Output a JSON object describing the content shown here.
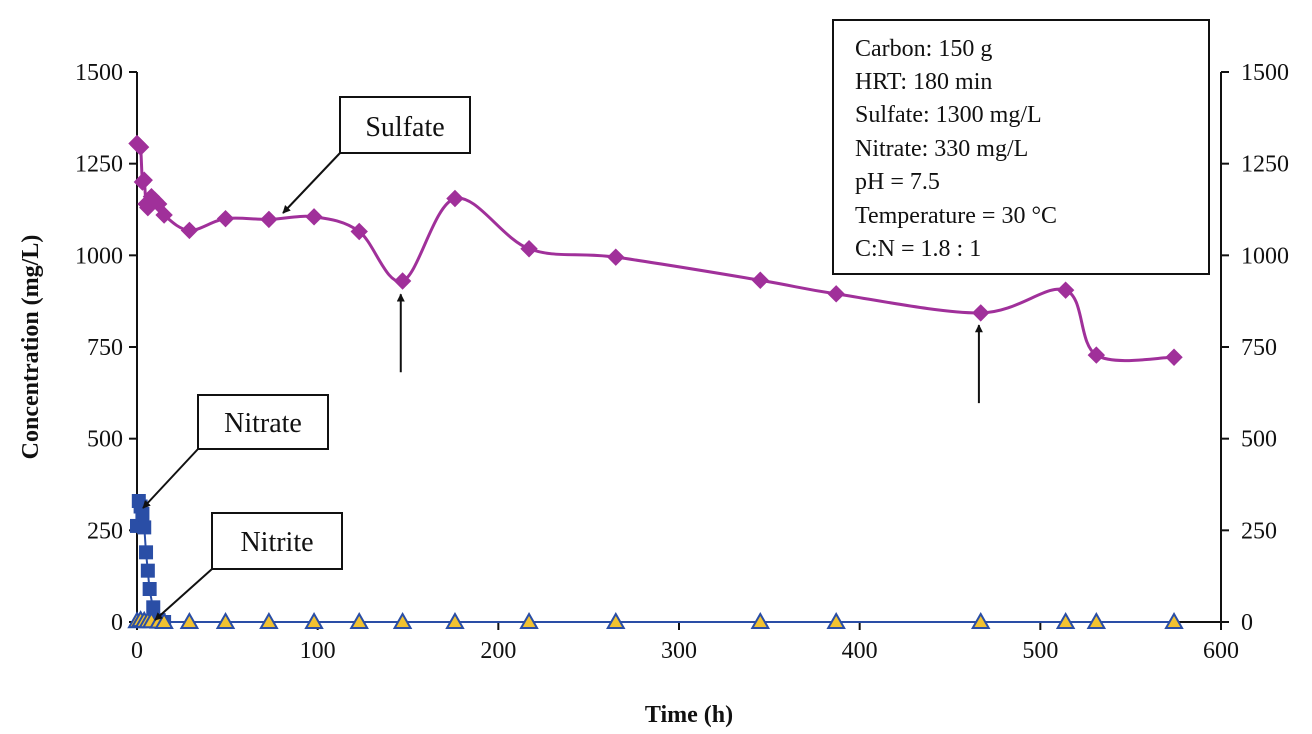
{
  "chart_data": {
    "type": "line",
    "title": "",
    "xlabel": "Time (h)",
    "ylabel": "Concentration (mg/L)",
    "xlim": [
      0,
      600
    ],
    "ylim": [
      0,
      1500
    ],
    "x_ticks": [
      "0",
      "100",
      "200",
      "300",
      "400",
      "500",
      "600"
    ],
    "y_ticks": [
      "0",
      "250",
      "500",
      "750",
      "1000",
      "1250",
      "1500"
    ],
    "y2_ticks": [
      "0",
      "250",
      "500",
      "750",
      "1000",
      "1250",
      "1500"
    ],
    "grid": false,
    "series": [
      {
        "name": "Sulfate",
        "marker": "diamond",
        "color": "#a0309a",
        "points": [
          [
            0,
            1305
          ],
          [
            1,
            1300
          ],
          [
            2,
            1295
          ],
          [
            3,
            1200
          ],
          [
            4,
            1205
          ],
          [
            5,
            1140
          ],
          [
            6,
            1130
          ],
          [
            8,
            1160
          ],
          [
            10,
            1150
          ],
          [
            12,
            1140
          ],
          [
            15,
            1110
          ],
          [
            29,
            1068
          ],
          [
            49,
            1100
          ],
          [
            73,
            1098
          ],
          [
            98,
            1105
          ],
          [
            123,
            1065
          ],
          [
            147,
            930
          ],
          [
            176,
            1155
          ],
          [
            217,
            1018
          ],
          [
            265,
            995
          ],
          [
            345,
            932
          ],
          [
            387,
            895
          ],
          [
            467,
            843
          ],
          [
            514,
            905
          ],
          [
            531,
            728
          ],
          [
            574,
            722
          ]
        ]
      },
      {
        "name": "Nitrate",
        "marker": "square",
        "color": "#2a4ea6",
        "points": [
          [
            0,
            262
          ],
          [
            1,
            330
          ],
          [
            2,
            315
          ],
          [
            3,
            295
          ],
          [
            4,
            258
          ],
          [
            5,
            190
          ],
          [
            6,
            140
          ],
          [
            7,
            90
          ],
          [
            9,
            40
          ],
          [
            12,
            5
          ],
          [
            15,
            0
          ]
        ]
      },
      {
        "name": "Nitrite",
        "marker": "triangle",
        "color": "#f2c230",
        "points": [
          [
            0,
            2
          ],
          [
            2,
            5
          ],
          [
            4,
            3
          ],
          [
            6,
            2
          ],
          [
            8,
            2
          ],
          [
            12,
            1
          ],
          [
            15,
            0
          ],
          [
            29,
            0
          ],
          [
            49,
            0
          ],
          [
            73,
            0
          ],
          [
            98,
            0
          ],
          [
            123,
            0
          ],
          [
            147,
            0
          ],
          [
            176,
            0
          ],
          [
            217,
            0
          ],
          [
            265,
            0
          ],
          [
            345,
            0
          ],
          [
            387,
            0
          ],
          [
            467,
            0
          ],
          [
            514,
            0
          ],
          [
            531,
            0
          ],
          [
            574,
            0
          ]
        ]
      }
    ],
    "callouts": [
      {
        "name": "sulfate",
        "label": "Sulfate",
        "target": [
          80,
          1100
        ]
      },
      {
        "name": "nitrate",
        "label": "Nitrate",
        "target": [
          3,
          310
        ]
      },
      {
        "name": "nitrite",
        "label": "Nitrite",
        "target": [
          8,
          5
        ]
      }
    ],
    "event_arrows": [
      {
        "x": 146,
        "y": 932
      },
      {
        "x": 466,
        "y": 848
      }
    ],
    "conditions": [
      "Carbon: 150 g",
      "HRT: 180 min",
      "Sulfate: 1300 mg/L",
      "Nitrate: 330 mg/L",
      "pH = 7.5",
      "Temperature = 30 °C",
      "C:N = 1.8 : 1"
    ]
  }
}
